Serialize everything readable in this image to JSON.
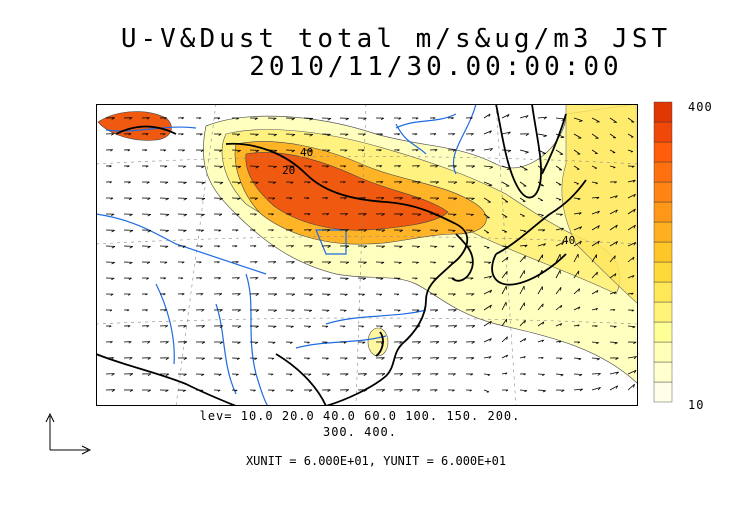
{
  "title_line1": "U-V&Dust total m/s&ug/m3 JST",
  "title_line2": "2010/11/30.00:00:00",
  "colorbar": {
    "max_label": "400",
    "min_label": "10",
    "colors": [
      "#ffffe8",
      "#ffffd0",
      "#ffffb8",
      "#ffff98",
      "#fff37a",
      "#ffe858",
      "#ffd83a",
      "#ffc628",
      "#ffb020",
      "#ff9818",
      "#ff8414",
      "#ff7010",
      "#ff5c0c",
      "#f04808",
      "#e03804"
    ]
  },
  "contour_labels": [
    "40",
    "20",
    "40"
  ],
  "levels_line1": "lev= 10.0 20.0 40.0 60.0 100. 150. 200.",
  "levels_line2": "300. 400.",
  "units_line": "XUNIT = 6.000E+01, YUNIT = 6.000E+01"
}
